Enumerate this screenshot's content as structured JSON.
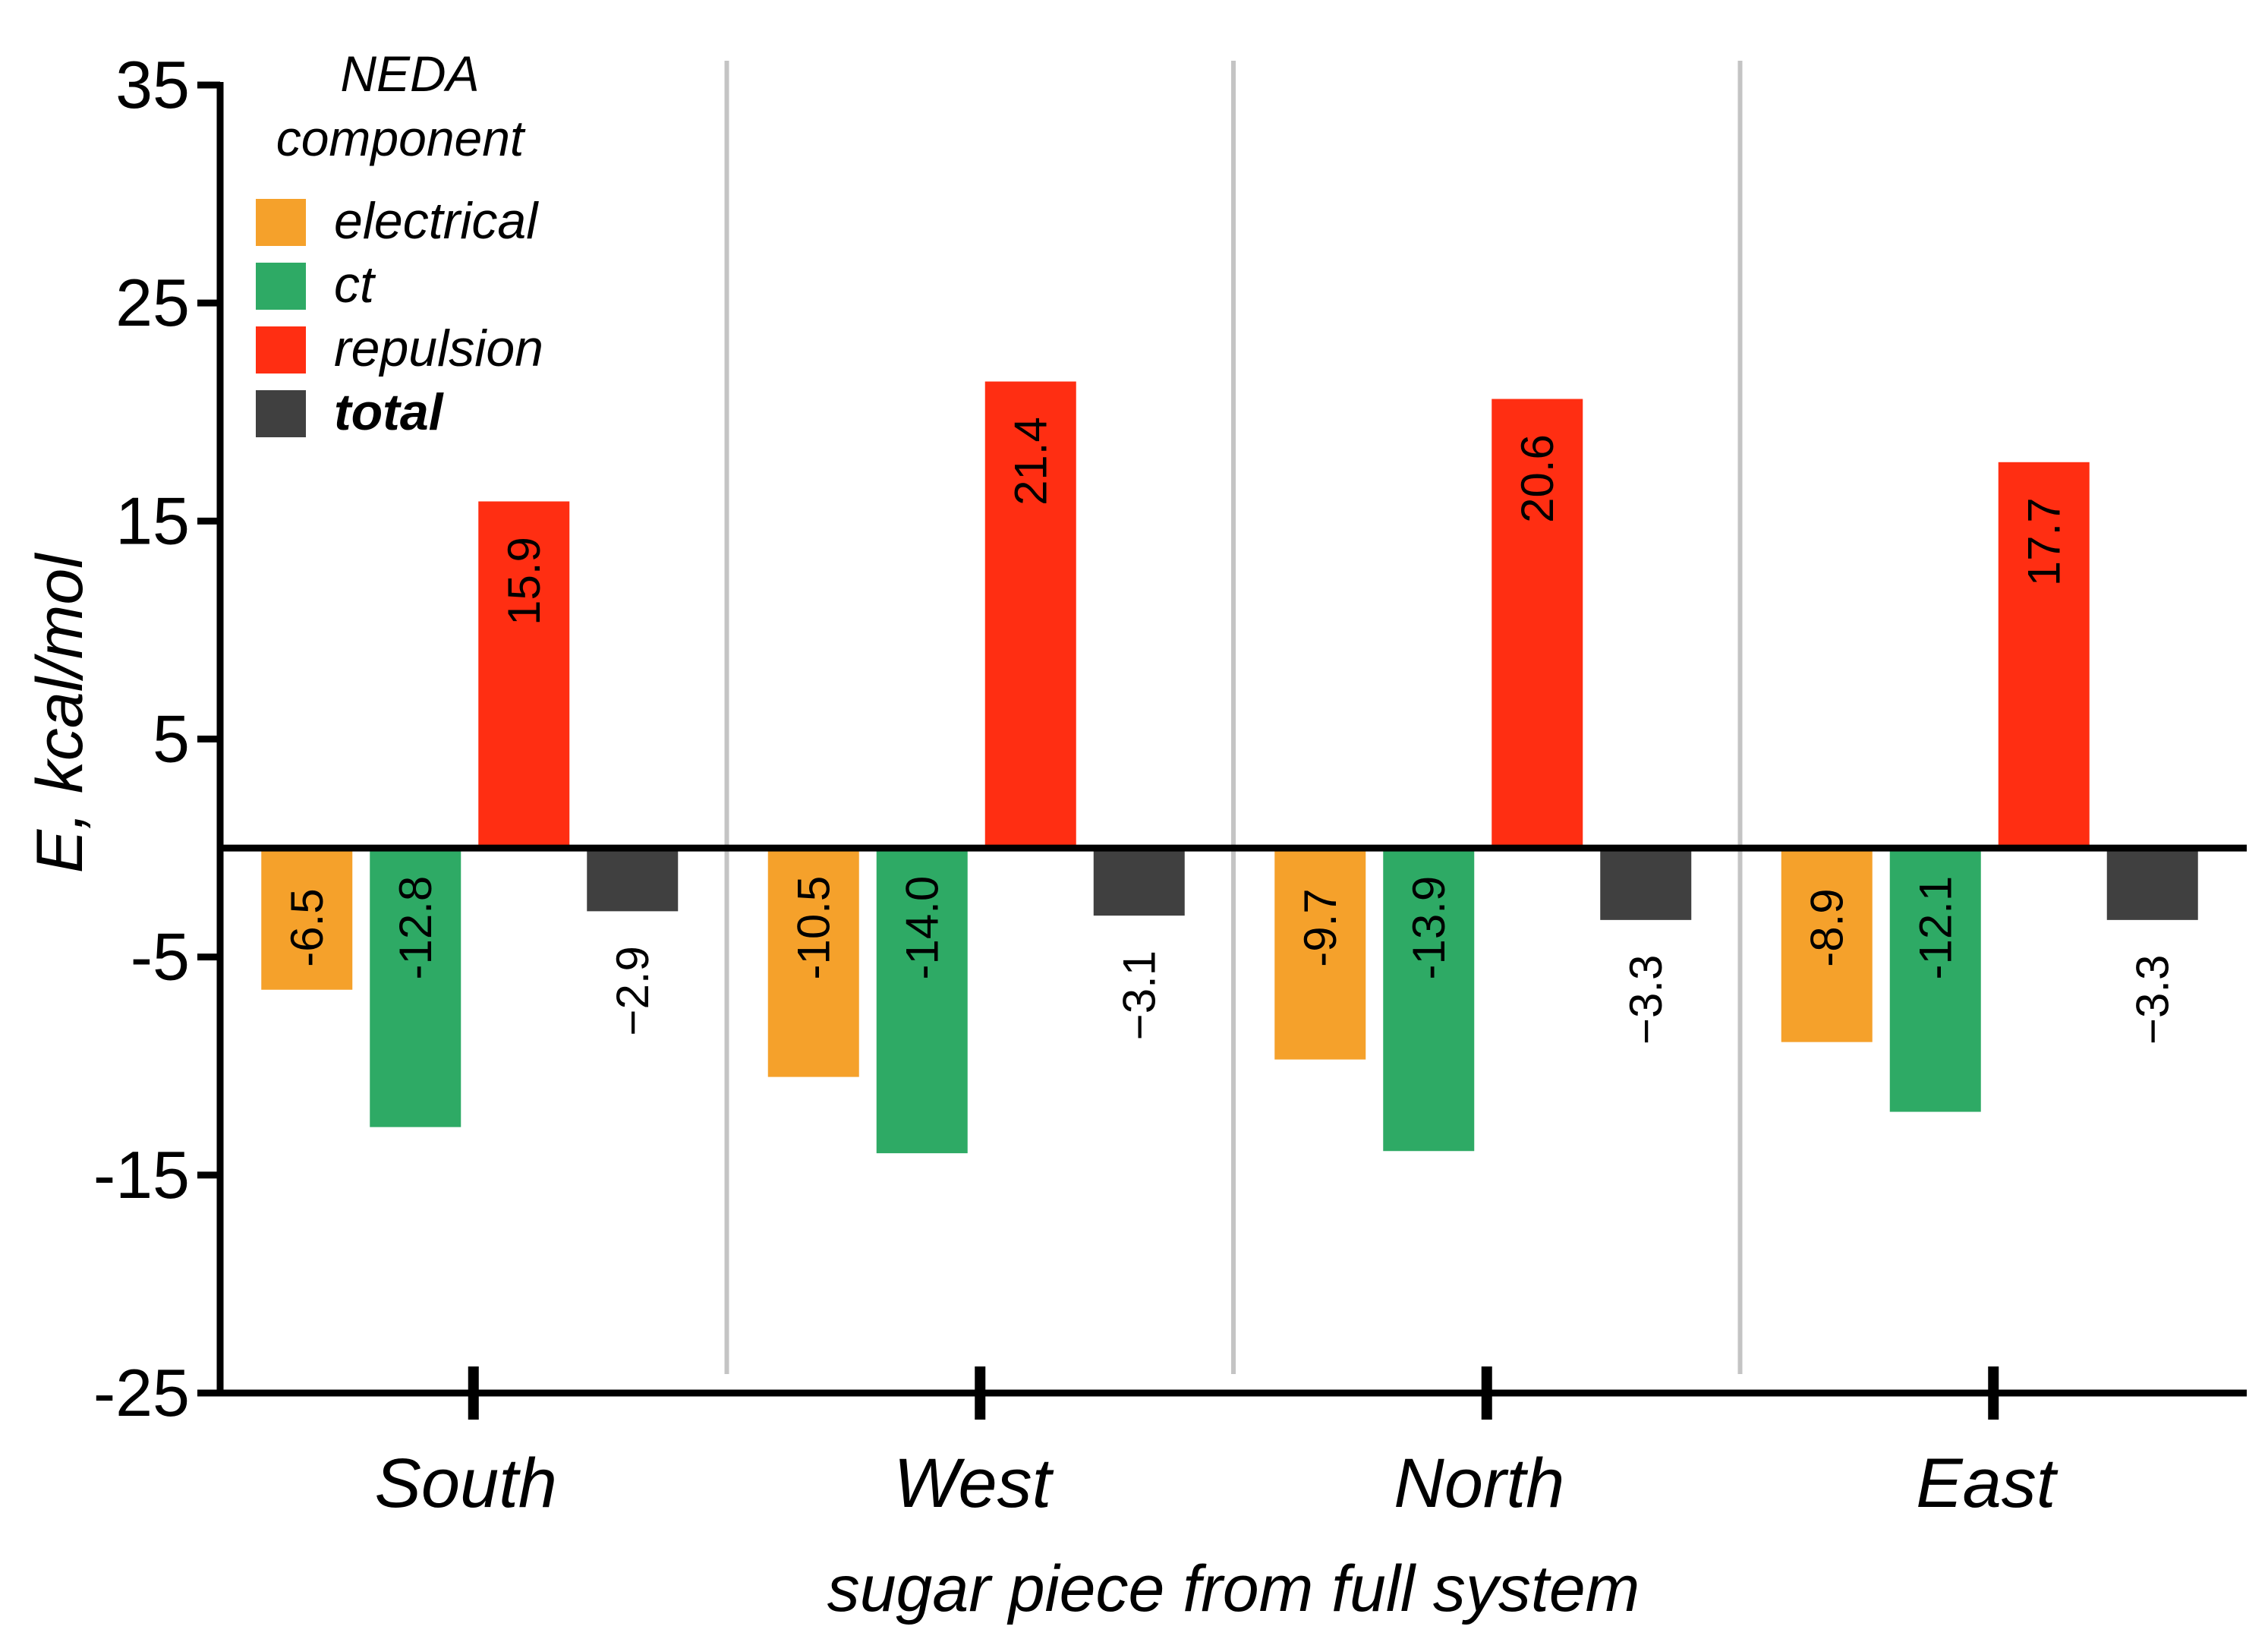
{
  "chart_data": {
    "type": "bar",
    "categories": [
      "South",
      "West",
      "North",
      "East"
    ],
    "series": [
      {
        "name": "electrical",
        "color": "#F5A12B",
        "values": [
          -6.5,
          -10.5,
          -9.7,
          -8.9
        ],
        "labels": [
          "-6.5",
          "-10.5",
          "-9.7",
          "-8.9"
        ]
      },
      {
        "name": "ct",
        "color": "#2EAA65",
        "values": [
          -12.8,
          -14.0,
          -13.9,
          -12.1
        ],
        "labels": [
          "-12.8",
          "-14.0",
          "-13.9",
          "-12.1"
        ]
      },
      {
        "name": "repulsion",
        "color": "#FF2E12",
        "values": [
          15.9,
          21.4,
          20.6,
          17.7
        ],
        "labels": [
          "15.9",
          "21.4",
          "20.6",
          "17.7"
        ]
      },
      {
        "name": "total",
        "color": "#404040",
        "values": [
          -2.9,
          -3.1,
          -3.3,
          -3.3
        ],
        "labels": [
          "−2.9",
          "−3.1",
          "−3.3",
          "−3.3"
        ]
      }
    ],
    "xlabel": "sugar piece from full system",
    "ylabel": "E, kcal/mol",
    "ylim": [
      -25,
      35
    ],
    "yticks": [
      35,
      25,
      15,
      5,
      -5,
      -15,
      -25
    ],
    "legend": {
      "title_line1": "NEDA",
      "title_line2": "component",
      "position": "top-left"
    },
    "grid": false,
    "category_separators": true
  }
}
